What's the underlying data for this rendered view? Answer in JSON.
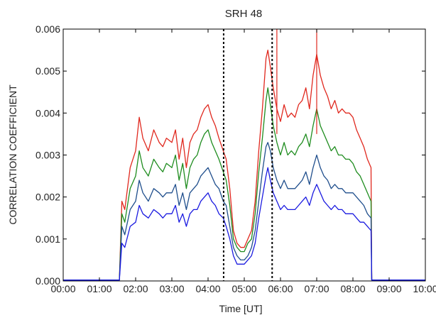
{
  "chart_data": {
    "type": "line",
    "title": "SRH 48",
    "xlabel": "Time [UT]",
    "ylabel": "CORRELATION COEFFICIENT",
    "xlim": [
      0,
      10
    ],
    "ylim": [
      0,
      0.006
    ],
    "x_ticks": [
      0,
      1,
      2,
      3,
      4,
      5,
      6,
      7,
      8,
      9,
      10
    ],
    "x_tick_labels": [
      "00:00",
      "01:00",
      "02:00",
      "03:00",
      "04:00",
      "05:00",
      "06:00",
      "07:00",
      "08:00",
      "09:00",
      "10:00"
    ],
    "y_ticks": [
      0,
      0.001,
      0.002,
      0.003,
      0.004,
      0.005,
      0.006
    ],
    "y_tick_labels": [
      "0.000",
      "0.001",
      "0.002",
      "0.003",
      "0.004",
      "0.005",
      "0.006"
    ],
    "grid": false,
    "legend": "none",
    "vertical_markers": [
      {
        "x": 4.43,
        "style": "dashed",
        "color": "#000000"
      },
      {
        "x": 5.77,
        "style": "dashed",
        "color": "#000000"
      }
    ],
    "series": [
      {
        "color": "#e0281e",
        "x": [
          0,
          1.55,
          1.62,
          1.7,
          1.85,
          2.0,
          2.1,
          2.2,
          2.35,
          2.5,
          2.65,
          2.75,
          2.85,
          3.0,
          3.1,
          3.2,
          3.3,
          3.4,
          3.5,
          3.6,
          3.7,
          3.8,
          3.9,
          4.0,
          4.1,
          4.2,
          4.3,
          4.42,
          4.5,
          4.6,
          4.7,
          4.8,
          4.9,
          5.0,
          5.1,
          5.2,
          5.3,
          5.4,
          5.5,
          5.6,
          5.65,
          5.72,
          5.8,
          5.9,
          6.0,
          6.1,
          6.2,
          6.3,
          6.4,
          6.5,
          6.6,
          6.7,
          6.8,
          6.9,
          7.0,
          7.1,
          7.2,
          7.3,
          7.4,
          7.5,
          7.6,
          7.7,
          7.8,
          7.9,
          8.0,
          8.1,
          8.2,
          8.3,
          8.4,
          8.5,
          8.52,
          8.6,
          9.0,
          10.0
        ],
        "values": [
          2e-05,
          2e-05,
          0.0019,
          0.0017,
          0.0027,
          0.0031,
          0.0039,
          0.0034,
          0.0031,
          0.0036,
          0.0033,
          0.0032,
          0.0034,
          0.0033,
          0.0036,
          0.0029,
          0.0034,
          0.0027,
          0.0033,
          0.0035,
          0.0036,
          0.0039,
          0.0041,
          0.0042,
          0.0039,
          0.0037,
          0.0034,
          0.0031,
          0.0029,
          0.0022,
          0.0012,
          0.0009,
          0.0008,
          0.0008,
          0.001,
          0.0012,
          0.0019,
          0.0031,
          0.0041,
          0.0053,
          0.0055,
          0.0051,
          0.0046,
          0.0041,
          0.0038,
          0.0042,
          0.0039,
          0.004,
          0.0039,
          0.0042,
          0.0043,
          0.0046,
          0.0041,
          0.0049,
          0.0054,
          0.0049,
          0.0046,
          0.0044,
          0.0041,
          0.0043,
          0.004,
          0.0041,
          0.004,
          0.004,
          0.0039,
          0.0036,
          0.0034,
          0.0032,
          0.0029,
          0.0027,
          2e-05,
          2e-05,
          2e-05,
          2e-05
        ]
      },
      {
        "color": "#1e8c1e",
        "x": [
          0,
          1.55,
          1.62,
          1.7,
          1.85,
          2.0,
          2.1,
          2.2,
          2.35,
          2.5,
          2.65,
          2.75,
          2.85,
          3.0,
          3.1,
          3.2,
          3.3,
          3.4,
          3.5,
          3.6,
          3.7,
          3.8,
          3.9,
          4.0,
          4.1,
          4.2,
          4.3,
          4.42,
          4.5,
          4.6,
          4.7,
          4.8,
          4.9,
          5.0,
          5.1,
          5.2,
          5.3,
          5.4,
          5.5,
          5.6,
          5.65,
          5.72,
          5.8,
          5.9,
          6.0,
          6.1,
          6.2,
          6.3,
          6.4,
          6.5,
          6.6,
          6.7,
          6.8,
          6.9,
          7.0,
          7.1,
          7.2,
          7.3,
          7.4,
          7.5,
          7.6,
          7.7,
          7.8,
          7.9,
          8.0,
          8.1,
          8.2,
          8.3,
          8.4,
          8.5,
          8.52,
          8.6,
          9.0,
          10.0
        ],
        "values": [
          2e-05,
          2e-05,
          0.0016,
          0.0014,
          0.0022,
          0.0025,
          0.0031,
          0.0027,
          0.0025,
          0.0029,
          0.0027,
          0.0026,
          0.0028,
          0.0027,
          0.003,
          0.0024,
          0.0028,
          0.0022,
          0.0027,
          0.0029,
          0.003,
          0.0033,
          0.0035,
          0.0036,
          0.0033,
          0.0031,
          0.0029,
          0.0026,
          0.0024,
          0.0018,
          0.001,
          0.0008,
          0.0007,
          0.0007,
          0.0009,
          0.001,
          0.0016,
          0.0026,
          0.0034,
          0.0043,
          0.0046,
          0.0042,
          0.0037,
          0.0033,
          0.003,
          0.0033,
          0.003,
          0.0031,
          0.003,
          0.0032,
          0.0033,
          0.0035,
          0.0032,
          0.0037,
          0.0041,
          0.0037,
          0.0035,
          0.0033,
          0.0031,
          0.0032,
          0.003,
          0.003,
          0.0029,
          0.0029,
          0.0028,
          0.0026,
          0.0025,
          0.0023,
          0.0021,
          0.0019,
          2e-05,
          2e-05,
          2e-05,
          2e-05
        ]
      },
      {
        "color": "#1f4e8c",
        "x": [
          0,
          1.55,
          1.62,
          1.7,
          1.85,
          2.0,
          2.1,
          2.2,
          2.35,
          2.5,
          2.65,
          2.75,
          2.85,
          3.0,
          3.1,
          3.2,
          3.3,
          3.4,
          3.5,
          3.6,
          3.7,
          3.8,
          3.9,
          4.0,
          4.1,
          4.2,
          4.3,
          4.42,
          4.5,
          4.6,
          4.7,
          4.8,
          4.9,
          5.0,
          5.1,
          5.2,
          5.3,
          5.4,
          5.5,
          5.6,
          5.65,
          5.72,
          5.8,
          5.9,
          6.0,
          6.1,
          6.2,
          6.3,
          6.4,
          6.5,
          6.6,
          6.7,
          6.8,
          6.9,
          7.0,
          7.1,
          7.2,
          7.3,
          7.4,
          7.5,
          7.6,
          7.7,
          7.8,
          7.9,
          8.0,
          8.1,
          8.2,
          8.3,
          8.4,
          8.5,
          8.52,
          8.6,
          9.0,
          10.0
        ],
        "values": [
          2e-05,
          2e-05,
          0.0013,
          0.0011,
          0.0017,
          0.0019,
          0.0024,
          0.0021,
          0.0019,
          0.0022,
          0.0021,
          0.002,
          0.0021,
          0.0021,
          0.0023,
          0.0018,
          0.0021,
          0.0017,
          0.0021,
          0.0022,
          0.0023,
          0.0025,
          0.0026,
          0.0027,
          0.0025,
          0.0023,
          0.0022,
          0.0019,
          0.0018,
          0.0013,
          0.0008,
          0.0006,
          0.0005,
          0.0005,
          0.0006,
          0.0008,
          0.0012,
          0.0019,
          0.0026,
          0.0032,
          0.0033,
          0.0031,
          0.0027,
          0.0024,
          0.0022,
          0.0024,
          0.0022,
          0.0022,
          0.0022,
          0.0023,
          0.0024,
          0.0026,
          0.0023,
          0.0027,
          0.003,
          0.0027,
          0.0025,
          0.0024,
          0.0022,
          0.0023,
          0.0022,
          0.0022,
          0.0021,
          0.0021,
          0.0021,
          0.002,
          0.0019,
          0.0018,
          0.0016,
          0.0015,
          2e-05,
          2e-05,
          2e-05,
          2e-05
        ]
      },
      {
        "color": "#1a1ae0",
        "x": [
          0,
          1.55,
          1.62,
          1.7,
          1.85,
          2.0,
          2.1,
          2.2,
          2.35,
          2.5,
          2.65,
          2.75,
          2.85,
          3.0,
          3.1,
          3.2,
          3.3,
          3.4,
          3.5,
          3.6,
          3.7,
          3.8,
          3.9,
          4.0,
          4.1,
          4.2,
          4.3,
          4.42,
          4.5,
          4.6,
          4.7,
          4.8,
          4.9,
          5.0,
          5.1,
          5.2,
          5.3,
          5.4,
          5.5,
          5.6,
          5.65,
          5.72,
          5.8,
          5.9,
          6.0,
          6.1,
          6.2,
          6.3,
          6.4,
          6.5,
          6.6,
          6.7,
          6.8,
          6.9,
          7.0,
          7.1,
          7.2,
          7.3,
          7.4,
          7.5,
          7.6,
          7.7,
          7.8,
          7.9,
          8.0,
          8.1,
          8.2,
          8.3,
          8.4,
          8.5,
          8.52,
          8.6,
          9.0,
          10.0
        ],
        "values": [
          2e-05,
          2e-05,
          0.0009,
          0.0008,
          0.0013,
          0.0014,
          0.0018,
          0.0016,
          0.0015,
          0.0017,
          0.0016,
          0.0015,
          0.0016,
          0.0016,
          0.0018,
          0.0014,
          0.0016,
          0.0013,
          0.0016,
          0.0017,
          0.0017,
          0.0019,
          0.002,
          0.0021,
          0.0019,
          0.0018,
          0.0016,
          0.0015,
          0.0013,
          0.001,
          0.0006,
          0.0004,
          0.0004,
          0.0004,
          0.0005,
          0.0006,
          0.0009,
          0.0015,
          0.002,
          0.0025,
          0.0027,
          0.0024,
          0.0021,
          0.0019,
          0.0017,
          0.0018,
          0.0017,
          0.0017,
          0.0017,
          0.0018,
          0.0019,
          0.002,
          0.0018,
          0.0021,
          0.0023,
          0.0021,
          0.0019,
          0.0018,
          0.0017,
          0.0018,
          0.0017,
          0.0017,
          0.0016,
          0.0016,
          0.0016,
          0.0015,
          0.0014,
          0.0014,
          0.0013,
          0.0012,
          2e-05,
          2e-05,
          2e-05,
          2e-05
        ]
      }
    ],
    "spikes": [
      {
        "x": 5.9,
        "y": 0.0062,
        "color": "#e0281e"
      },
      {
        "x": 7.0,
        "y": 0.0062,
        "color": "#e0281e"
      }
    ]
  }
}
